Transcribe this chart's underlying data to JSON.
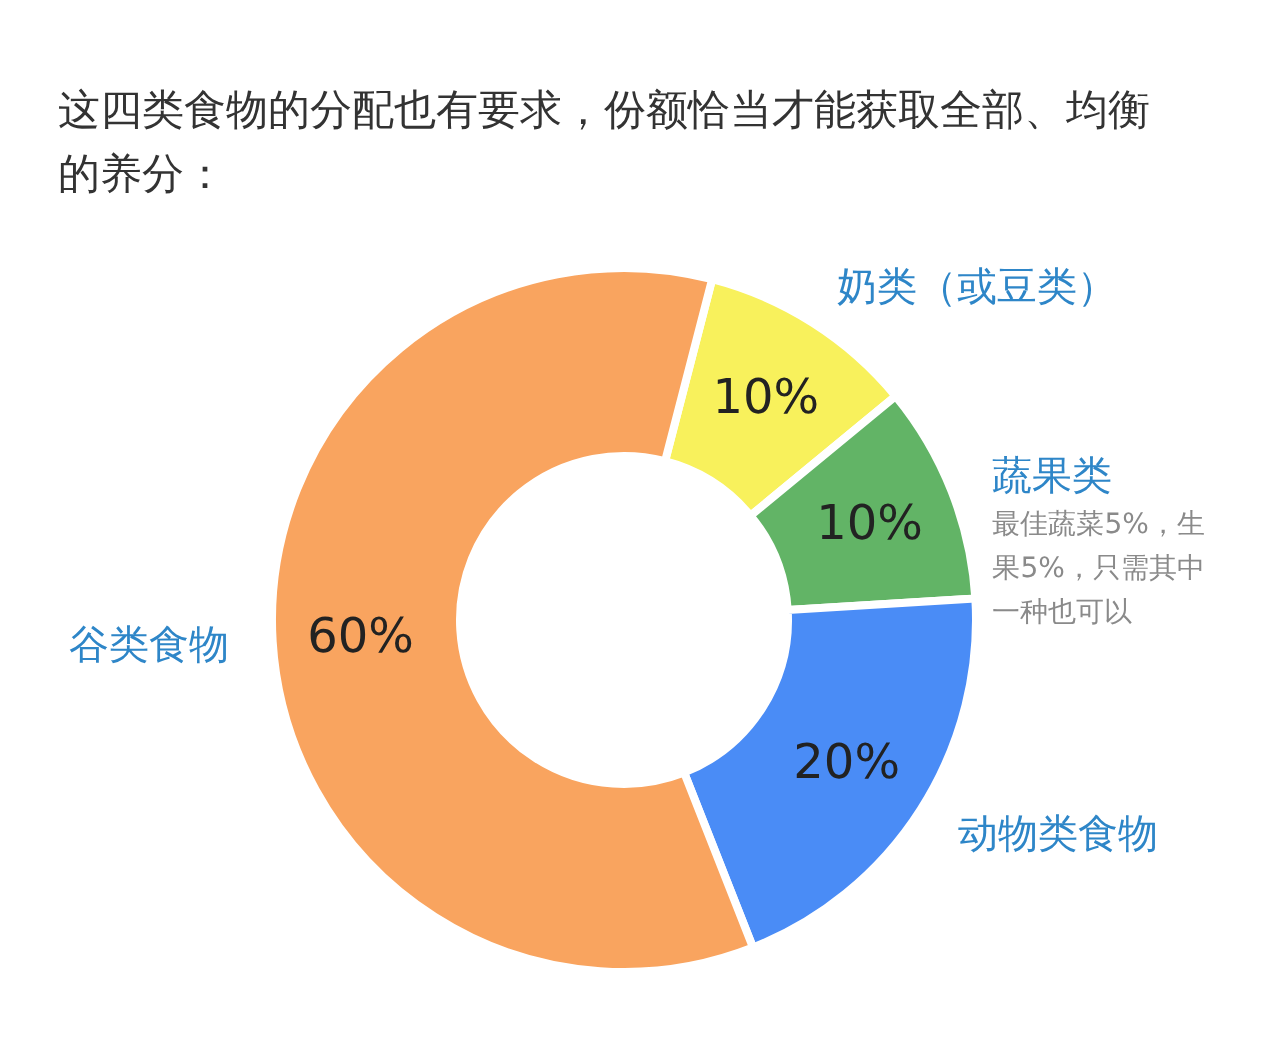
{
  "chart_data": {
    "type": "donut",
    "title": "这四类食物的分配也有要求，份额恰当才能获取全部、均衡的养分：",
    "categories": [
      "奶类（或豆类）",
      "蔬果类",
      "动物类食物",
      "谷类食物"
    ],
    "values": [
      10,
      10,
      20,
      60
    ],
    "colors": [
      "#f8f15c",
      "#62b466",
      "#4a8cf6",
      "#f9a45f"
    ],
    "value_labels": [
      "10%",
      "10%",
      "20%",
      "60%"
    ],
    "annotations": [
      "最佳蔬菜5%，生果5%，只需其中一种也可以"
    ]
  }
}
